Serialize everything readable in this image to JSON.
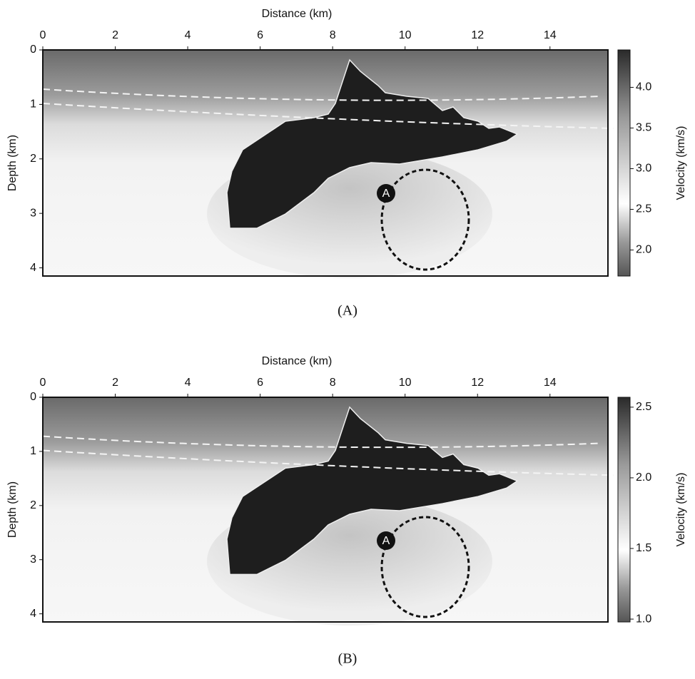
{
  "chart_data": [
    {
      "type": "image",
      "caption": "(A)",
      "xlabel": "Distance (km)",
      "ylabel": "Depth (km)",
      "xlim": [
        0,
        15.6
      ],
      "ylim": [
        0,
        4.15
      ],
      "y_inverted": true,
      "xticks": [
        0,
        2,
        4,
        6,
        8,
        10,
        12,
        14
      ],
      "yticks": [
        0,
        1,
        2,
        3,
        4
      ],
      "annotation": "A",
      "colorbar": {
        "label": "Velocity (km/s)",
        "lim": [
          1.68,
          4.46
        ],
        "ticks": [
          {
            "value": 2,
            "label": "2.0"
          },
          {
            "value": 2.5,
            "label": "2.5"
          },
          {
            "value": 3,
            "label": "3.0"
          },
          {
            "value": 3.5,
            "label": "3.5"
          },
          {
            "value": 4,
            "label": "4.0"
          }
        ]
      }
    },
    {
      "type": "image",
      "caption": "(B)",
      "xlabel": "Distance (km)",
      "ylabel": "Depth (km)",
      "xlim": [
        0,
        15.6
      ],
      "ylim": [
        0,
        4.15
      ],
      "y_inverted": true,
      "xticks": [
        0,
        2,
        4,
        6,
        8,
        10,
        12,
        14
      ],
      "yticks": [
        0,
        1,
        2,
        3,
        4
      ],
      "annotation": "A",
      "colorbar": {
        "label": "Velocity (km/s)",
        "lim": [
          0.98,
          2.57
        ],
        "ticks": [
          {
            "value": 1,
            "label": "1.0"
          },
          {
            "value": 1.5,
            "label": "1.5"
          },
          {
            "value": 2,
            "label": "2.0"
          },
          {
            "value": 2.5,
            "label": "2.5"
          }
        ]
      }
    }
  ]
}
